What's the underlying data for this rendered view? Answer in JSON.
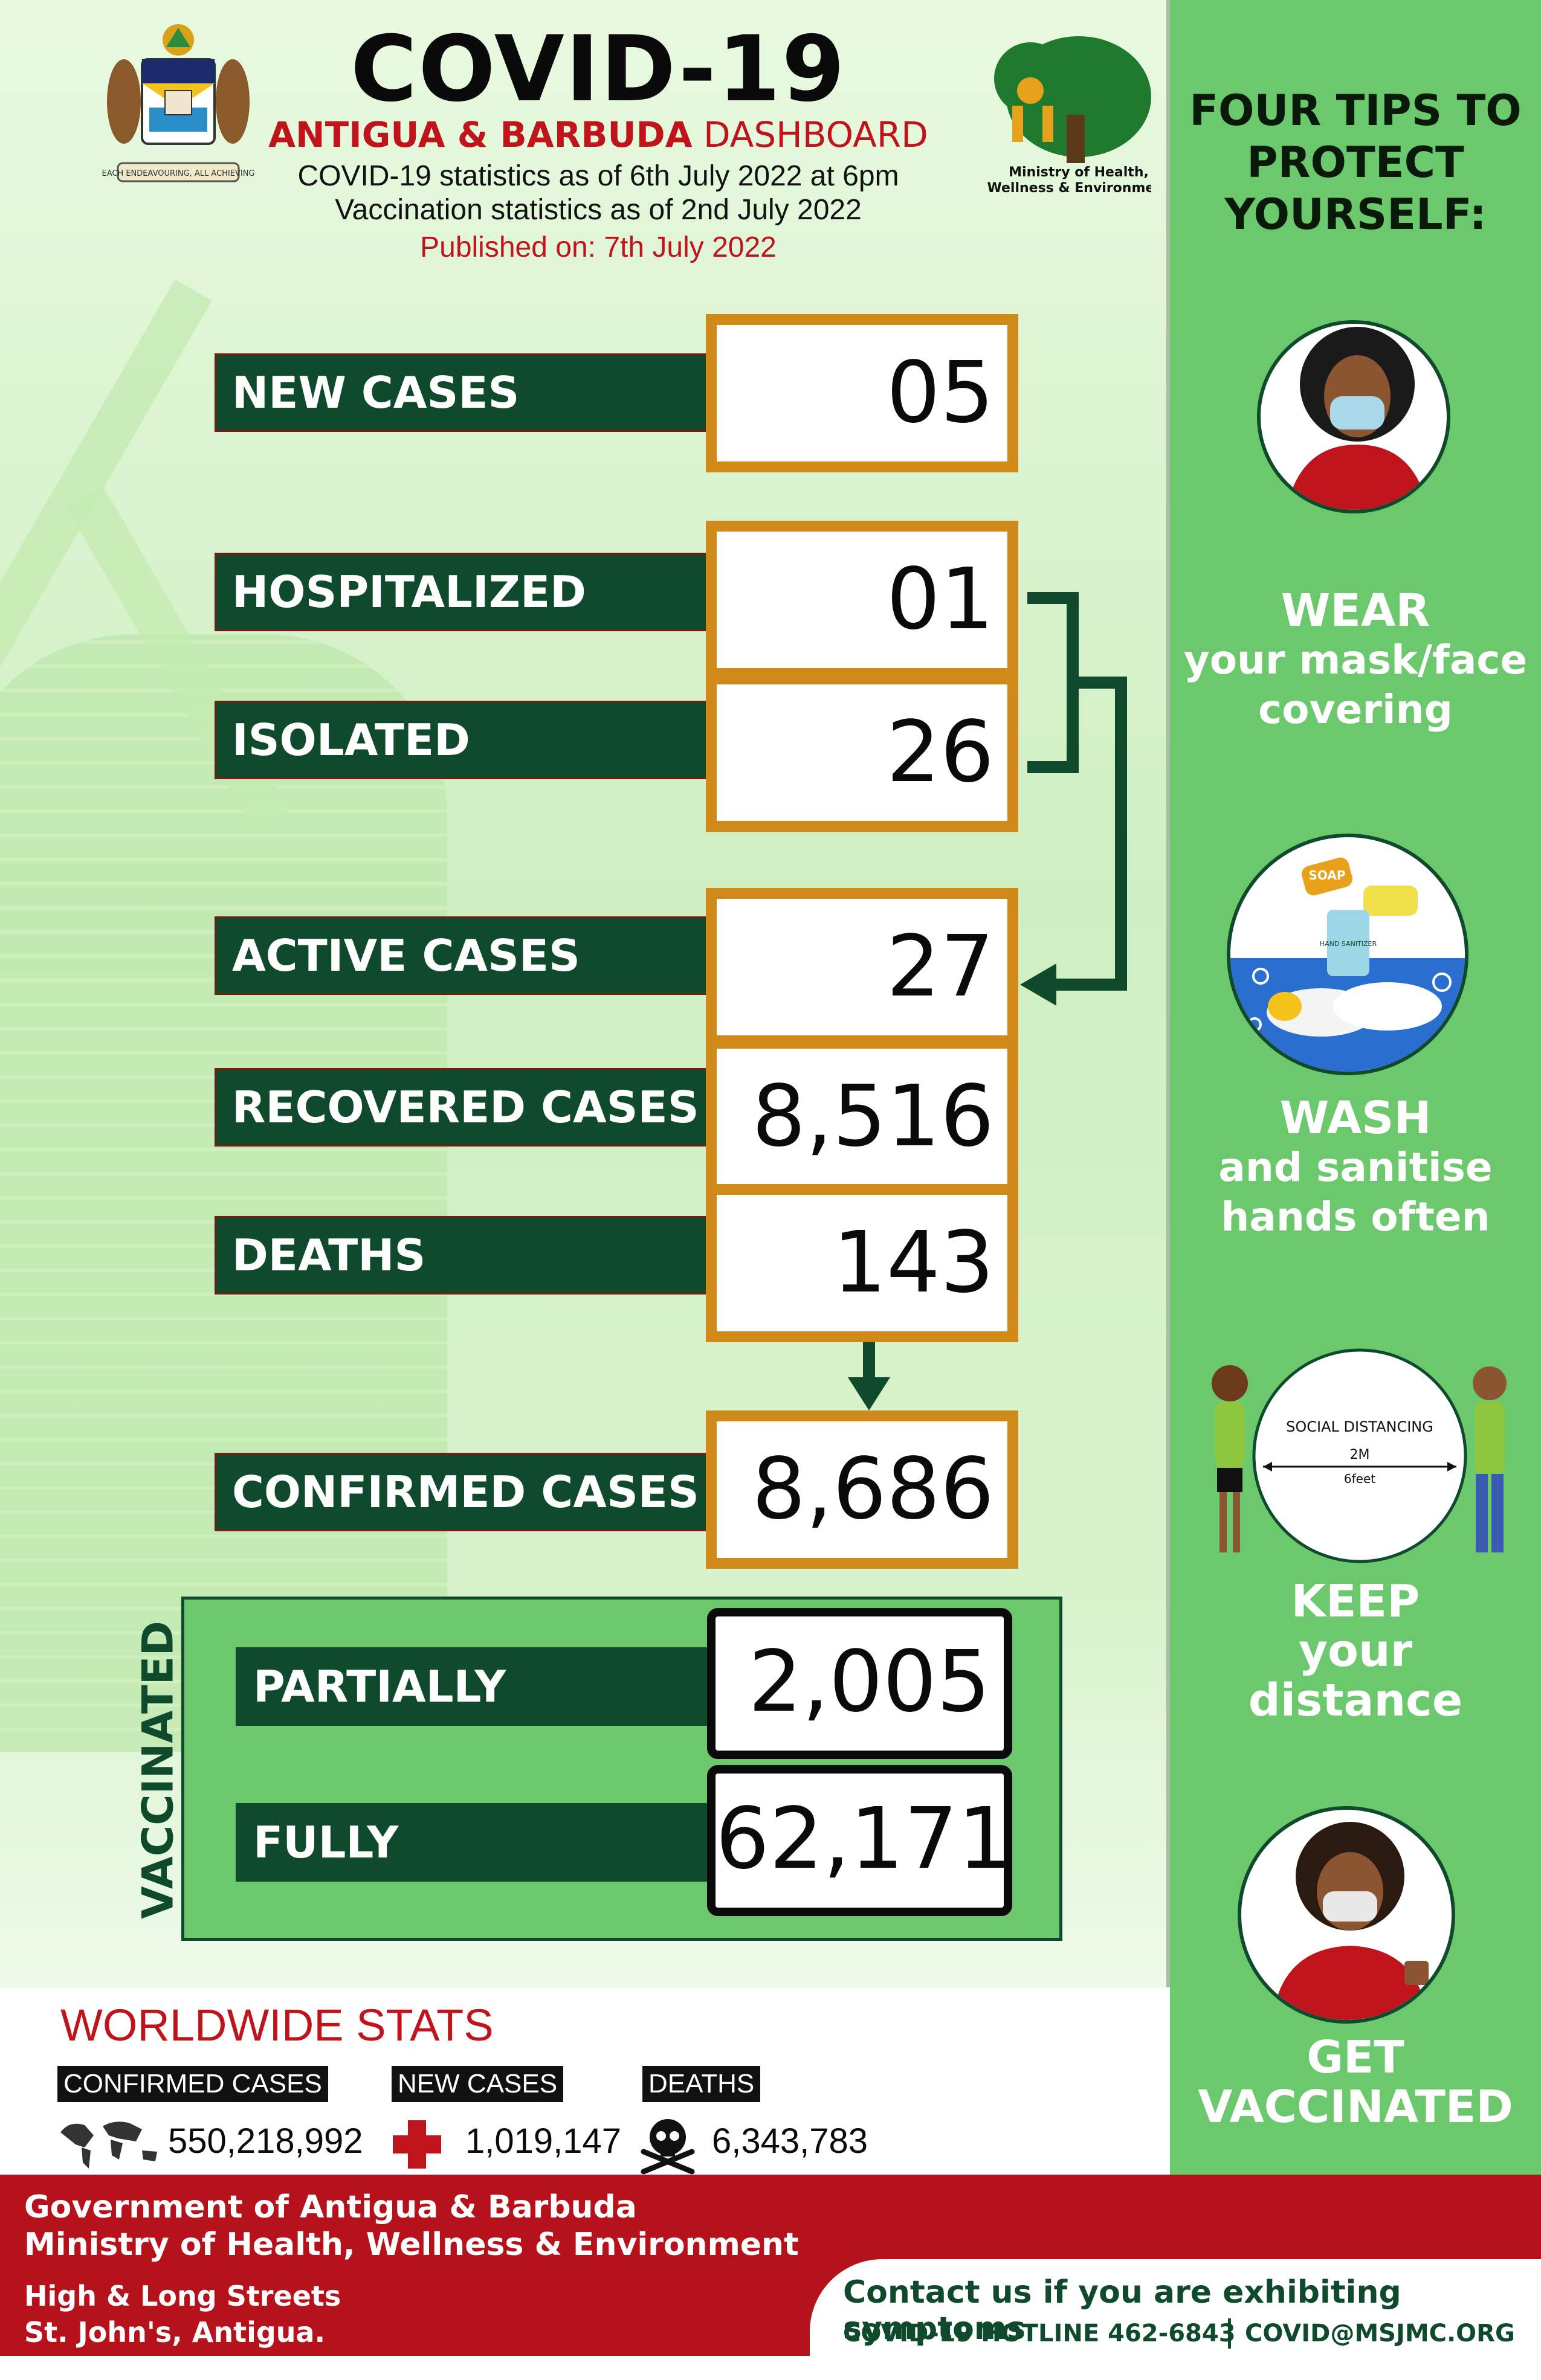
{
  "header": {
    "title": "COVID-19",
    "subtitle_bold": "ANTIGUA & BARBUDA",
    "subtitle_rest": "DASHBOARD",
    "stats_date": "COVID-19 statistics as of 6th July 2022 at 6pm",
    "vacc_date": "Vaccination statistics as of 2nd July 2022",
    "published": "Published on: 7th July 2022",
    "coat_motto": "EACH ENDEAVOURING, ALL ACHIEVING",
    "ministry_logo_text": [
      "Ministry of Health,",
      "Wellness & Environment"
    ]
  },
  "stats": {
    "new_cases": {
      "label": "NEW CASES",
      "value": "05"
    },
    "hospitalized": {
      "label": "HOSPITALIZED",
      "value": "01"
    },
    "isolated": {
      "label": "ISOLATED",
      "value": "26"
    },
    "active_cases": {
      "label": "ACTIVE CASES",
      "value": "27"
    },
    "recovered_cases": {
      "label": "RECOVERED CASES",
      "value": "8,516"
    },
    "deaths": {
      "label": "DEATHS",
      "value": "143"
    },
    "confirmed_cases": {
      "label": "CONFIRMED CASES",
      "value": "8,686"
    }
  },
  "vaccinated": {
    "side_label": "VACCINATED",
    "partially": {
      "label": "PARTIALLY",
      "value": "2,005"
    },
    "fully": {
      "label": "FULLY",
      "value": "62,171"
    }
  },
  "tips": {
    "heading": [
      "FOUR TIPS TO",
      "PROTECT",
      "YOURSELF:"
    ],
    "mask": [
      "WEAR",
      "your mask/face",
      "covering"
    ],
    "wash": [
      "WASH",
      "and sanitise",
      "hands often"
    ],
    "distance": [
      "KEEP",
      "your",
      "distance"
    ],
    "distance_sign": [
      "SOCIAL DISTANCING",
      "2M",
      "6feet"
    ],
    "vaccinate": [
      "GET",
      "VACCINATED"
    ],
    "soap_label": "SOAP",
    "sanitizer_label": "HAND SANITIZER"
  },
  "worldwide": {
    "title": "WORLDWIDE STATS",
    "confirmed": {
      "label": "CONFIRMED CASES",
      "value": "550,218,992"
    },
    "new_cases": {
      "label": "NEW CASES",
      "value": "1,019,147"
    },
    "deaths": {
      "label": "DEATHS",
      "value": "6,343,783"
    }
  },
  "footer": {
    "gov": "Government of Antigua & Barbuda",
    "ministry": "Ministry of Health, Wellness & Environment",
    "address1": "High & Long Streets",
    "address2": "St. John's, Antigua.",
    "contact_heading": "Contact us if you are exhibiting symptoms",
    "hotline": "COVID-19 HOTLINE 462-6843",
    "email": "COVID@MSJMC.ORG"
  },
  "colors": {
    "dark_green": "#0f4a2c",
    "orange_border": "#d08a1a",
    "red": "#c0141c",
    "panel_green": "#6cc86c"
  }
}
